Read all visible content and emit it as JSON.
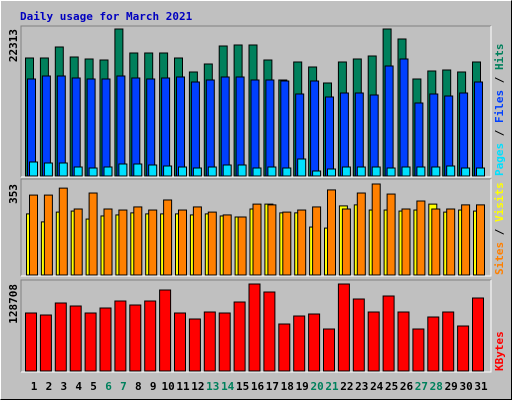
{
  "title": "Daily usage for March 2021",
  "legend_separator": " / ",
  "chart_data": [
    {
      "type": "bar",
      "ylim": [
        0,
        22313
      ],
      "yticks": [
        22313
      ],
      "series": [
        {
          "name": "Hits",
          "color": "#00805C",
          "values": [
            17912,
            17912,
            19582,
            18064,
            17761,
            17609,
            22313,
            18671,
            18671,
            18671,
            17912,
            15787,
            17002,
            19734,
            19886,
            19886,
            17609,
            14573,
            17305,
            16546,
            14117,
            17305,
            17761,
            18216,
            22313,
            20797,
            14725,
            15939,
            16091,
            15787,
            17305
          ]
        },
        {
          "name": "Files",
          "color": "#0040FF",
          "values": [
            14725,
            15180,
            15180,
            14876,
            14725,
            14725,
            15180,
            14876,
            14725,
            14876,
            15028,
            14269,
            14573,
            15028,
            15028,
            14573,
            14573,
            14421,
            12448,
            14421,
            11992,
            12599,
            12599,
            12296,
            16698,
            17761,
            11081,
            12448,
            12144,
            12599,
            14269
          ]
        },
        {
          "name": "Pages",
          "color": "#00E0FF",
          "values": [
            2125,
            1973,
            1973,
            1366,
            1214,
            1366,
            1822,
            1822,
            1670,
            1518,
            1366,
            1214,
            1366,
            1670,
            1670,
            1214,
            1366,
            1214,
            2581,
            759,
            1063,
            1366,
            1366,
            1366,
            1214,
            1366,
            1366,
            1366,
            1518,
            1214,
            1214
          ]
        }
      ]
    },
    {
      "type": "bar",
      "ylim": [
        0,
        353
      ],
      "yticks": [
        353
      ],
      "series": [
        {
          "name": "Visits",
          "color": "#FFFF00",
          "values": [
            237,
            206,
            244,
            248,
            217,
            229,
            233,
            241,
            237,
            237,
            237,
            233,
            237,
            229,
            225,
            256,
            275,
            241,
            241,
            186,
            182,
            268,
            272,
            252,
            252,
            248,
            252,
            275,
            244,
            252,
            248
          ]
        },
        {
          "name": "Sites",
          "color": "#FF8000",
          "values": [
            310,
            310,
            337,
            256,
            318,
            256,
            252,
            264,
            252,
            291,
            252,
            264,
            244,
            233,
            225,
            275,
            272,
            244,
            252,
            264,
            330,
            256,
            318,
            353,
            314,
            256,
            287,
            256,
            256,
            272,
            272
          ]
        }
      ]
    },
    {
      "type": "bar",
      "ylim": [
        0,
        128708
      ],
      "yticks": [
        128708
      ],
      "categories": [
        "1",
        "2",
        "3",
        "4",
        "5",
        "6",
        "7",
        "8",
        "9",
        "10",
        "11",
        "12",
        "13",
        "14",
        "15",
        "16",
        "17",
        "18",
        "19",
        "20",
        "21",
        "22",
        "23",
        "24",
        "25",
        "26",
        "27",
        "28",
        "29",
        "30",
        "31"
      ],
      "category_colors": [
        "#000000",
        "#000000",
        "#000000",
        "#000000",
        "#000000",
        "#00805C",
        "#00805C",
        "#000000",
        "#000000",
        "#000000",
        "#000000",
        "#000000",
        "#00805C",
        "#00805C",
        "#000000",
        "#000000",
        "#000000",
        "#000000",
        "#000000",
        "#00805C",
        "#00805C",
        "#000000",
        "#000000",
        "#000000",
        "#000000",
        "#000000",
        "#00805C",
        "#00805C",
        "#000000",
        "#000000",
        "#000000"
      ],
      "series": [
        {
          "name": "KBytes",
          "color": "#FF0000",
          "values": [
            85805,
            82846,
            100599,
            96161,
            85805,
            93202,
            103558,
            97640,
            103558,
            119831,
            85805,
            76929,
            87285,
            85805,
            102079,
            128708,
            116873,
            69532,
            81367,
            84326,
            62135,
            128708,
            106517,
            87285,
            110955,
            87285,
            62135,
            79888,
            87285,
            66573,
            107996
          ]
        }
      ]
    }
  ]
}
